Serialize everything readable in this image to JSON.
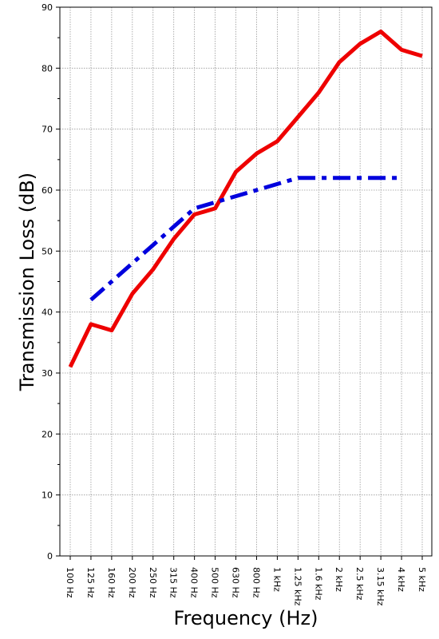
{
  "chart_data": {
    "type": "line",
    "xlabel": "Frequency (Hz)",
    "ylabel": "Transmission Loss (dB)",
    "ylim": [
      0,
      90
    ],
    "yticks": [
      0,
      10,
      20,
      30,
      40,
      50,
      60,
      70,
      80,
      90
    ],
    "grid": true,
    "categories": [
      "100 Hz",
      "125 Hz",
      "160 Hz",
      "200 Hz",
      "250 Hz",
      "315 Hz",
      "400 Hz",
      "500 Hz",
      "630 Hz",
      "800 Hz",
      "1 kHz",
      "1.25 kHz",
      "1.6 kHz",
      "2 kHz",
      "2.5 kHz",
      "3.15 kHz",
      "4 kHz",
      "5 kHz"
    ],
    "series": [
      {
        "color": "#ee0000",
        "style": "solid",
        "values": [
          31,
          38,
          37,
          43,
          47,
          52,
          56,
          57,
          63,
          66,
          68,
          72,
          76,
          81,
          84,
          86,
          83,
          82
        ]
      },
      {
        "color": "#0000dd",
        "style": "dash-dot",
        "values": [
          null,
          42,
          45,
          48,
          51,
          54,
          57,
          58,
          59,
          60,
          61,
          62,
          62,
          62,
          62,
          62,
          62,
          null
        ]
      }
    ]
  }
}
